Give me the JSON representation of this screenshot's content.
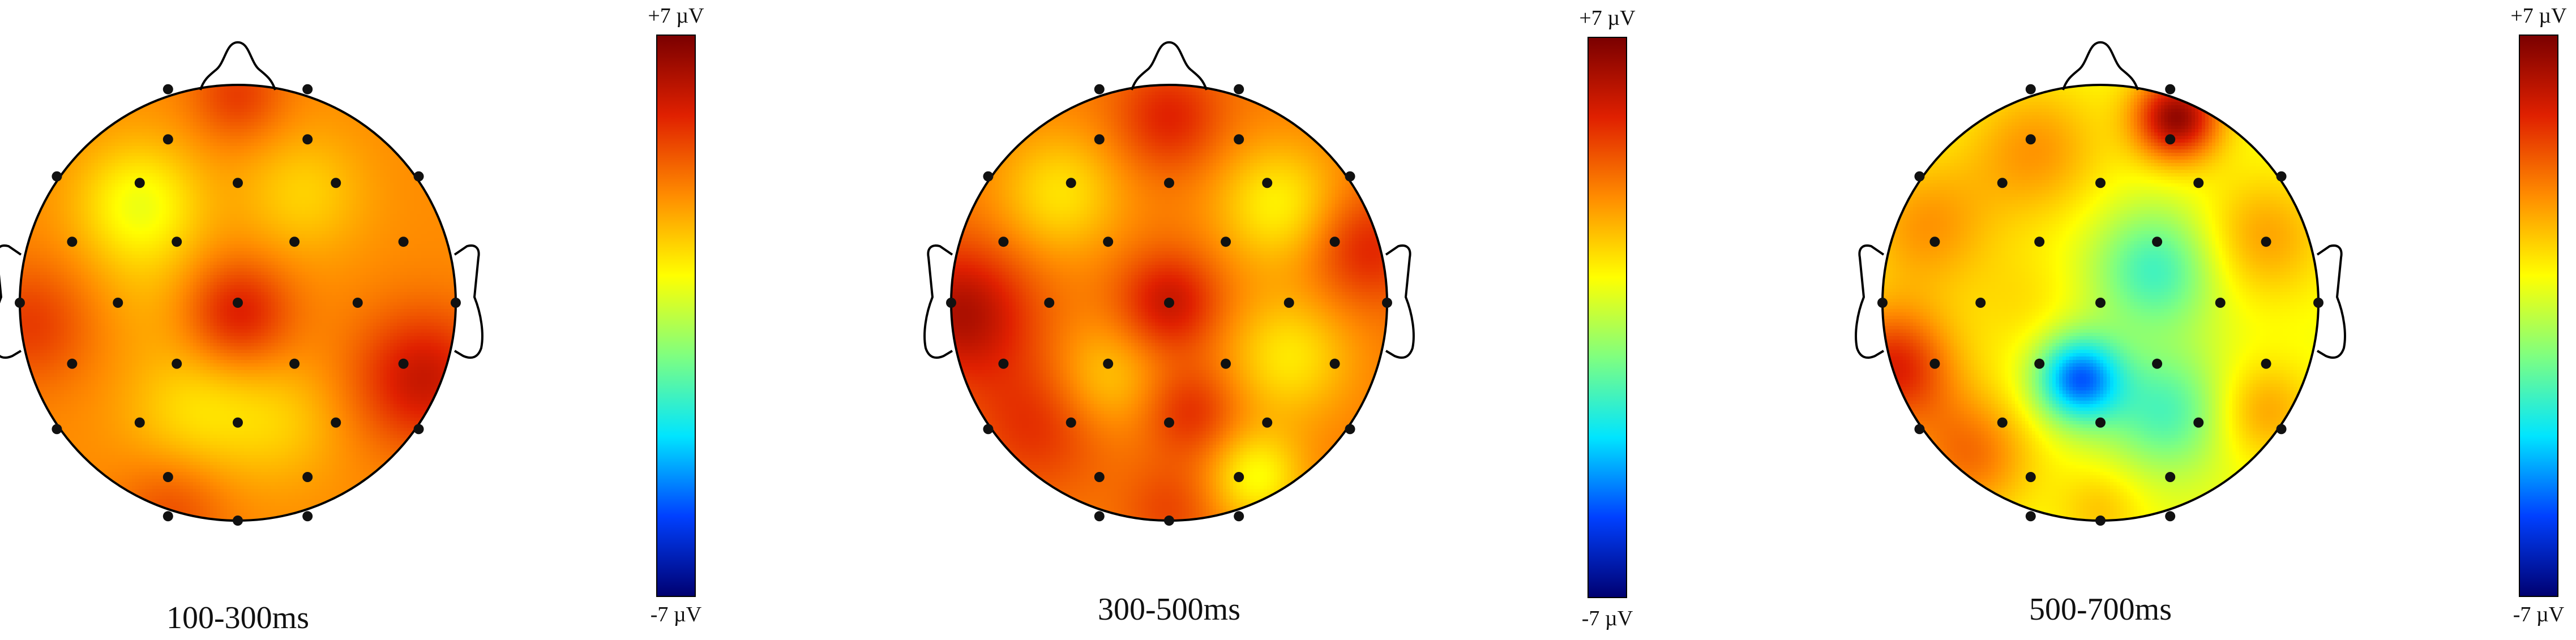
{
  "colorscale": {
    "max_label": "+7 µV",
    "min_label": "-7 µV",
    "max_value": 7,
    "min_value": -7,
    "stops": [
      "#7a0000",
      "#e02000",
      "#ff8c00",
      "#ffff00",
      "#7fff80",
      "#00e5ff",
      "#0040ff",
      "#000070"
    ]
  },
  "head_outline_color": "#000000",
  "electrode_color": "#111111",
  "panels": [
    {
      "caption": "100-300ms",
      "base_value": 3.0,
      "blobs": [
        {
          "u": 0.0,
          "v": -0.95,
          "value": 4.5,
          "spread": 0.15
        },
        {
          "u": -0.45,
          "v": -0.45,
          "value": 0.8,
          "spread": 0.2
        },
        {
          "u": 0.3,
          "v": -0.5,
          "value": 1.8,
          "spread": 0.2
        },
        {
          "u": 0.0,
          "v": 0.05,
          "value": 5.2,
          "spread": 0.17
        },
        {
          "u": -0.95,
          "v": 0.1,
          "value": 4.5,
          "spread": 0.2
        },
        {
          "u": 0.85,
          "v": 0.35,
          "value": 5.5,
          "spread": 0.22
        },
        {
          "u": -0.2,
          "v": 0.5,
          "value": 1.6,
          "spread": 0.22
        },
        {
          "u": 0.2,
          "v": 0.55,
          "value": 2.0,
          "spread": 0.2
        },
        {
          "u": -0.4,
          "v": -0.05,
          "value": 2.5,
          "spread": 0.2
        },
        {
          "u": -0.3,
          "v": 0.95,
          "value": 4.2,
          "spread": 0.18
        }
      ]
    },
    {
      "caption": "300-500ms",
      "base_value": 3.3,
      "blobs": [
        {
          "u": 0.0,
          "v": -0.85,
          "value": 5.0,
          "spread": 0.17
        },
        {
          "u": -0.5,
          "v": -0.5,
          "value": 1.5,
          "spread": 0.2
        },
        {
          "u": 0.5,
          "v": -0.45,
          "value": 1.2,
          "spread": 0.2
        },
        {
          "u": -0.95,
          "v": 0.05,
          "value": 6.0,
          "spread": 0.22
        },
        {
          "u": 0.0,
          "v": 0.0,
          "value": 5.5,
          "spread": 0.16
        },
        {
          "u": 0.9,
          "v": -0.25,
          "value": 5.0,
          "spread": 0.18
        },
        {
          "u": 0.55,
          "v": 0.25,
          "value": 1.4,
          "spread": 0.2
        },
        {
          "u": -0.3,
          "v": 0.35,
          "value": 1.8,
          "spread": 0.18
        },
        {
          "u": 0.1,
          "v": 0.5,
          "value": 4.8,
          "spread": 0.15
        },
        {
          "u": -0.6,
          "v": 0.55,
          "value": 4.8,
          "spread": 0.22
        },
        {
          "u": 0.4,
          "v": 0.8,
          "value": 1.0,
          "spread": 0.15
        },
        {
          "u": 0.0,
          "v": 0.95,
          "value": 4.3,
          "spread": 0.15
        }
      ]
    },
    {
      "caption": "500-700ms",
      "base_value": 0.8,
      "blobs": [
        {
          "u": 0.35,
          "v": -0.85,
          "value": 6.5,
          "spread": 0.14
        },
        {
          "u": -0.3,
          "v": -0.7,
          "value": 2.8,
          "spread": 0.22
        },
        {
          "u": 0.75,
          "v": -0.3,
          "value": 2.6,
          "spread": 0.2
        },
        {
          "u": -0.8,
          "v": -0.35,
          "value": 2.8,
          "spread": 0.22
        },
        {
          "u": -0.95,
          "v": 0.3,
          "value": 5.0,
          "spread": 0.2
        },
        {
          "u": -0.6,
          "v": 0.7,
          "value": 3.5,
          "spread": 0.2
        },
        {
          "u": -0.1,
          "v": 0.35,
          "value": -4.5,
          "spread": 0.14
        },
        {
          "u": 0.25,
          "v": -0.15,
          "value": -2.0,
          "spread": 0.2
        },
        {
          "u": 0.3,
          "v": 0.5,
          "value": -1.8,
          "spread": 0.2
        },
        {
          "u": 0.75,
          "v": 0.5,
          "value": 2.6,
          "spread": 0.16
        },
        {
          "u": 0.0,
          "v": 0.95,
          "value": 2.0,
          "spread": 0.14
        },
        {
          "u": -0.35,
          "v": 0.0,
          "value": 1.5,
          "spread": 0.18
        }
      ]
    }
  ]
}
